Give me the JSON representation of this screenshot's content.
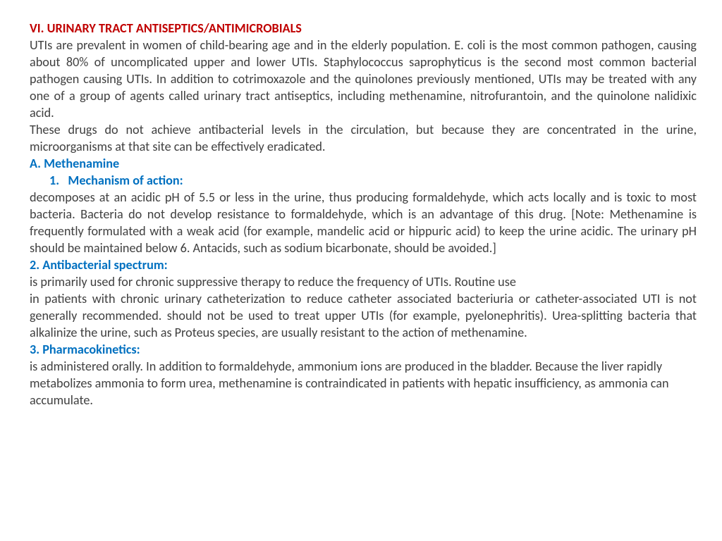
{
  "colors": {
    "title": "#c00000",
    "subheading": "#0070c0",
    "body": "#404040",
    "background": "#ffffff"
  },
  "typography": {
    "font_family": "Calibri",
    "body_size_pt": 14,
    "line_height": 1.32,
    "title_weight": 700,
    "sub_weight": 700
  },
  "title": "VI. URINARY TRACT ANTISEPTICS/ANTIMICROBIALS",
  "para1": "UTIs are prevalent in women of child-bearing age and in the elderly population. E. coli is the most common pathogen, causing about 80% of uncomplicated upper and lower UTIs. Staphylococcus saprophyticus is the second most common bacterial pathogen causing UTIs. In addition to cotrimoxazole and the quinolones previously mentioned, UTIs may be treated with any one of a group of agents called urinary tract antiseptics, including methenamine, nitrofurantoin, and the quinolone nalidixic acid.",
  "para2": "These drugs do not achieve antibacterial levels in the circulation, but because they are concentrated in the urine, microorganisms at that site can be effectively eradicated.",
  "sub_a": "A. Methenamine",
  "h1_num": "1.",
  "h1_text": "Mechanism of action:",
  "p_h1": "decomposes at an acidic pH of 5.5 or less in the urine, thus producing formaldehyde, which acts locally and is toxic to most bacteria. Bacteria do not develop resistance to formaldehyde, which is an advantage of this drug. [Note: Methenamine is frequently formulated with a weak acid (for example, mandelic acid or hippuric acid) to keep the urine acidic. The urinary pH should be maintained below 6. Antacids, such as sodium bicarbonate, should be avoided.]",
  "h2": "2. Antibacterial spectrum:",
  "p_h2a": "is primarily used for chronic suppressive therapy to reduce the frequency of UTIs. Routine use",
  "p_h2b": "in patients with chronic urinary catheterization to reduce catheter associated bacteriuria or catheter-associated UTI is not generally recommended. should not be used to treat upper UTIs (for example, pyelonephritis). Urea-splitting bacteria that alkalinize the urine, such as Proteus species, are usually resistant to the action of methenamine.",
  "h3": "3. Pharmacokinetics:",
  "p_h3": "is administered orally. In addition to formaldehyde, ammonium ions are produced in the bladder. Because the liver rapidly metabolizes ammonia to form urea, methenamine is contraindicated in patients with hepatic insufficiency, as ammonia can accumulate."
}
